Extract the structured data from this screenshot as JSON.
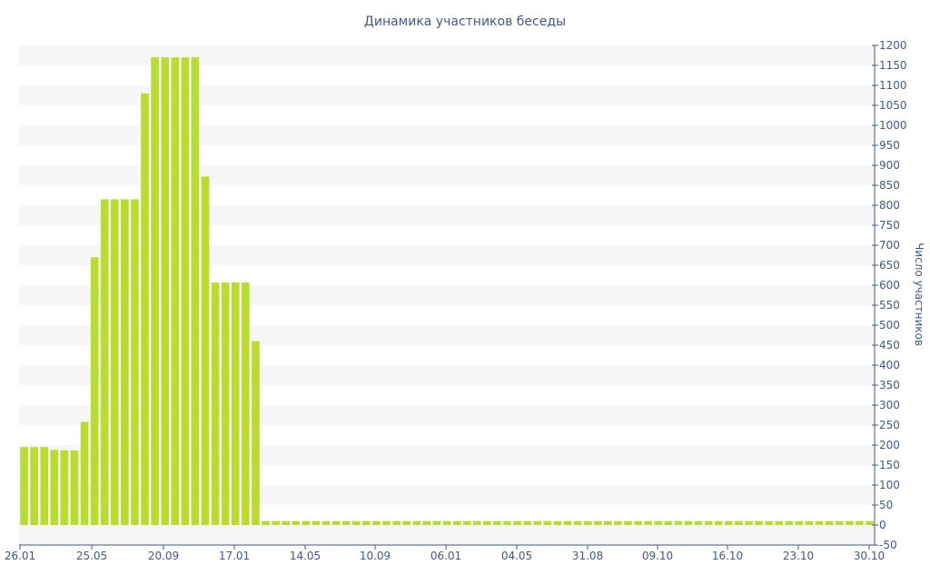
{
  "chart_data": {
    "type": "bar",
    "title": "Динамика участников беседы",
    "xlabel": "",
    "ylabel": "Число участников",
    "ylim": [
      -50,
      1200
    ],
    "y_ticks": [
      -50,
      0,
      50,
      100,
      150,
      200,
      250,
      300,
      350,
      400,
      450,
      500,
      550,
      600,
      650,
      700,
      750,
      800,
      850,
      900,
      950,
      1000,
      1050,
      1100,
      1150,
      1200
    ],
    "x_tick_labels": [
      "26.01",
      "25.05",
      "20.09",
      "17.01",
      "14.05",
      "10.09",
      "06.01",
      "04.05",
      "31.08",
      "09.10",
      "16.10",
      "23.10",
      "30.10"
    ],
    "y_axis_position": "right",
    "grid": "alternating horizontal bands",
    "legend": "none",
    "bar_color": "#b8dd2e",
    "values": [
      195,
      195,
      195,
      188,
      187,
      187,
      258,
      670,
      815,
      815,
      815,
      815,
      1080,
      1170,
      1170,
      1170,
      1170,
      1170,
      872,
      607,
      607,
      607,
      607,
      460,
      10,
      10,
      10,
      10,
      10,
      10,
      10,
      10,
      10,
      10,
      10,
      10,
      10,
      10,
      10,
      10,
      10,
      10,
      10,
      10,
      10,
      10,
      10,
      10,
      10,
      10,
      10,
      10,
      10,
      10,
      10,
      10,
      10,
      10,
      10,
      10,
      10,
      10,
      10,
      10,
      10,
      10,
      10,
      10,
      10,
      10,
      10,
      10,
      10,
      10,
      10,
      10,
      10,
      10,
      10,
      10,
      10,
      10,
      10,
      10,
      10
    ]
  }
}
